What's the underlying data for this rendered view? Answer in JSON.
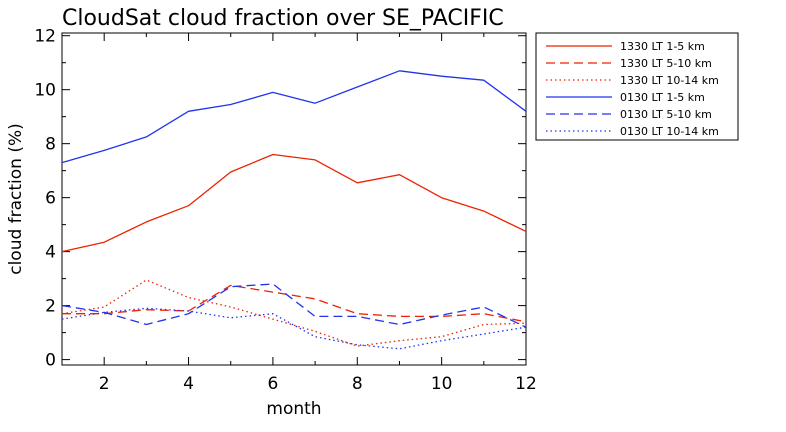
{
  "chart_data": {
    "type": "line",
    "title": "CloudSat cloud fraction over SE_PACIFIC",
    "xlabel": "month",
    "ylabel": "cloud fraction (%)",
    "xlim": [
      1,
      12
    ],
    "ylim": [
      -0.2,
      12.1
    ],
    "xticks": [
      2,
      4,
      6,
      8,
      10,
      12
    ],
    "yticks": [
      0,
      2,
      4,
      6,
      8,
      10,
      12
    ],
    "x": [
      1,
      2,
      3,
      4,
      5,
      6,
      7,
      8,
      9,
      10,
      11,
      12
    ],
    "legend_position": "right",
    "series": [
      {
        "name": "1330 LT 1-5 km",
        "color": "#ee2200",
        "dash": "solid",
        "values": [
          4.0,
          4.35,
          5.1,
          5.7,
          6.95,
          7.6,
          7.4,
          6.55,
          6.85,
          6.0,
          5.5,
          4.75
        ]
      },
      {
        "name": "1330 LT 5-10 km",
        "color": "#ee2200",
        "dash": "dashed",
        "values": [
          1.7,
          1.7,
          1.85,
          1.8,
          2.75,
          2.5,
          2.25,
          1.7,
          1.6,
          1.6,
          1.7,
          1.4
        ]
      },
      {
        "name": "1330 LT 10-14 km",
        "color": "#ee2200",
        "dash": "dotted",
        "values": [
          1.7,
          1.95,
          2.95,
          2.3,
          1.95,
          1.5,
          1.05,
          0.5,
          0.7,
          0.85,
          1.3,
          1.35
        ]
      },
      {
        "name": "0130 LT 1-5 km",
        "color": "#2233ee",
        "dash": "solid",
        "values": [
          7.3,
          7.75,
          8.25,
          9.2,
          9.45,
          9.9,
          9.5,
          10.1,
          10.7,
          10.5,
          10.35,
          9.2
        ]
      },
      {
        "name": "0130 LT 5-10 km",
        "color": "#2233ee",
        "dash": "dashed",
        "values": [
          2.0,
          1.75,
          1.3,
          1.7,
          2.7,
          2.8,
          1.6,
          1.6,
          1.3,
          1.65,
          1.95,
          1.2
        ]
      },
      {
        "name": "0130 LT 10-14 km",
        "color": "#2233ee",
        "dash": "dotted",
        "values": [
          1.5,
          1.75,
          1.9,
          1.8,
          1.55,
          1.7,
          0.85,
          0.55,
          0.4,
          0.7,
          0.95,
          1.2
        ]
      }
    ]
  }
}
